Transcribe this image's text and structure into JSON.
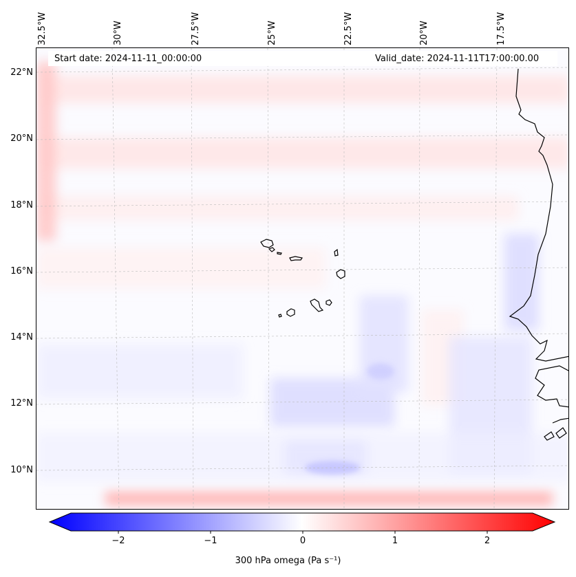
{
  "map": {
    "title_left": "Start date: 2024-11-11_00:00:00",
    "title_right": "Valid_date: 2024-11-11T17:00:00.00",
    "longitude_labels": [
      "32.5°W",
      "30°W",
      "27.5°W",
      "25°W",
      "22.5°W",
      "20°W",
      "17.5°W"
    ],
    "latitude_labels": [
      "22°N",
      "20°N",
      "18°N",
      "16°N",
      "14°N",
      "12°N",
      "10°N"
    ],
    "features": [
      "Cape Verde islands",
      "West African coastline"
    ]
  },
  "colorbar": {
    "label": "300 hPa omega (Pa s⁻¹)",
    "ticks": [
      "−2",
      "−1",
      "0",
      "1",
      "2"
    ],
    "range": [
      -2.6,
      2.6
    ],
    "colormap": "bwr",
    "color_negative": "#0000ff",
    "color_zero": "#ffffff",
    "color_positive": "#ff0000"
  }
}
